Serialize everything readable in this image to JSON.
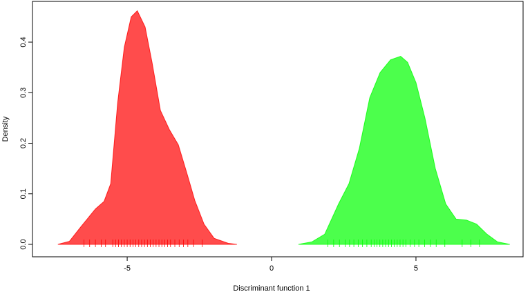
{
  "chart_data": {
    "type": "density",
    "xlabel": "Discriminant function 1",
    "ylabel": "Density",
    "xlim": [
      -8.28,
      8.71
    ],
    "ylim": [
      -0.0246,
      0.4806
    ],
    "xticks": [
      -5,
      0,
      5
    ],
    "yticks": [
      {
        "value": 0,
        "label": "0.0"
      },
      {
        "value": 0.1,
        "label": "0.1"
      },
      {
        "value": 0.2,
        "label": "0.2"
      },
      {
        "value": 0.3,
        "label": "0.3"
      },
      {
        "value": 0.4,
        "label": "0.4"
      }
    ],
    "series": [
      {
        "color": "#ff0000",
        "x": [
          -7.4,
          -7.0,
          -6.6,
          -6.1,
          -5.8,
          -5.57,
          -5.33,
          -5.1,
          -4.86,
          -4.65,
          -4.38,
          -4.14,
          -3.85,
          -3.54,
          -3.23,
          -2.94,
          -2.66,
          -2.34,
          -1.99,
          -1.5,
          -1.2
        ],
        "values": [
          0,
          0.006,
          0.035,
          0.07,
          0.085,
          0.12,
          0.28,
          0.39,
          0.45,
          0.462,
          0.43,
          0.36,
          0.265,
          0.227,
          0.197,
          0.142,
          0.087,
          0.04,
          0.012,
          0.002,
          0
        ],
        "rug": [
          -6.5,
          -6.3,
          -6.1,
          -5.9,
          -5.75,
          -5.5,
          -5.4,
          -5.3,
          -5.2,
          -5.1,
          -5.0,
          -4.9,
          -4.8,
          -4.7,
          -4.6,
          -4.5,
          -4.4,
          -4.3,
          -4.2,
          -4.1,
          -4.0,
          -3.9,
          -3.8,
          -3.7,
          -3.6,
          -3.5,
          -3.35,
          -3.2,
          -3.05,
          -2.9,
          -2.7,
          -2.4
        ]
      },
      {
        "color": "#00ff00",
        "x": [
          0.93,
          1.4,
          1.84,
          2.32,
          2.68,
          3.04,
          3.4,
          3.76,
          4.12,
          4.47,
          4.71,
          5.0,
          5.31,
          5.67,
          6.03,
          6.39,
          6.75,
          7.1,
          7.46,
          7.82,
          8.25
        ],
        "values": [
          0,
          0.005,
          0.02,
          0.08,
          0.12,
          0.19,
          0.29,
          0.34,
          0.365,
          0.372,
          0.36,
          0.32,
          0.25,
          0.15,
          0.08,
          0.05,
          0.048,
          0.04,
          0.02,
          0.005,
          0
        ],
        "rug": [
          1.95,
          2.15,
          2.35,
          2.55,
          2.7,
          2.85,
          3.0,
          3.15,
          3.3,
          3.45,
          3.55,
          3.65,
          3.75,
          3.85,
          3.95,
          4.05,
          4.15,
          4.25,
          4.35,
          4.45,
          4.55,
          4.65,
          4.8,
          4.95,
          5.1,
          5.3,
          5.5,
          5.7,
          6.0,
          6.6,
          6.9,
          7.2
        ]
      }
    ]
  }
}
